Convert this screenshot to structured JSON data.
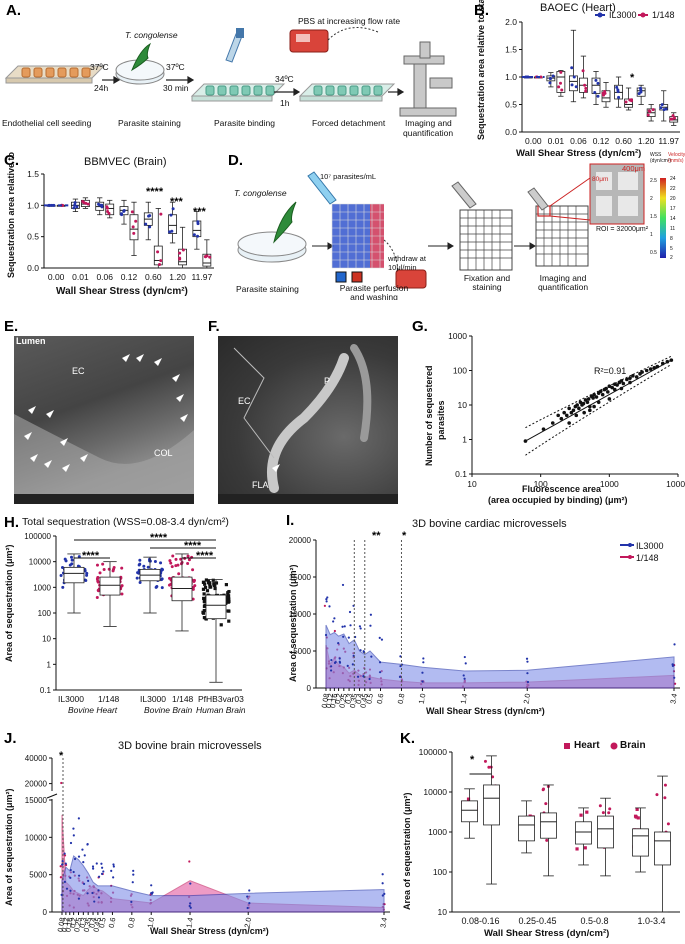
{
  "panels": {
    "A": {
      "label": "A.",
      "steps": [
        "Endothelial cell seeding",
        "Parasite staining",
        "Parasite binding",
        "Forced detachment",
        "Imaging and quantification"
      ],
      "arrow_labels": [
        [
          "37ºC",
          "24h"
        ],
        [
          "37ºC",
          "30 min"
        ],
        [
          "34ºC",
          "1h"
        ]
      ],
      "species": "T. congolense",
      "pbs": "PBS at increasing flow rate"
    },
    "B": {
      "label": "B.",
      "title": "BAOEC (Heart)",
      "ylabel": "Sequestration area relative to static",
      "xlabel": "Wall Shear Stress  (dyn/cm²)",
      "sig": "*"
    },
    "C": {
      "label": "C.",
      "title": "BBMVEC (Brain)",
      "ylabel": "Sequestration area relative to static",
      "xlabel": "Wall Shear Stress  (dyn/cm²)",
      "sig": [
        "****",
        "***",
        "***"
      ]
    },
    "D": {
      "label": "D.",
      "species": "T. congolense",
      "conc": "10⁷ parasites/mL",
      "withdraw": "withdraw at 10μl/min",
      "steps": [
        "Parasite staining",
        "Parasite perfusion and washing",
        "Fixation and staining",
        "Imaging and quantification"
      ],
      "dim1": "400μm",
      "dim2": "80μm",
      "roi": "ROI = 32000μm²",
      "scale_left_title": "WSS (dyn/cm²)",
      "scale_right_title": "Velocity (mm/s)",
      "scale_left": [
        "2.5",
        "2",
        "1.5",
        "1",
        "0.5"
      ],
      "scale_right": [
        "24",
        "22",
        "20",
        "17",
        "14",
        "11",
        "8",
        "5",
        "2"
      ]
    },
    "E": {
      "label": "E.",
      "labels": [
        "Lumen",
        "EC",
        "COL"
      ]
    },
    "F": {
      "label": "F.",
      "labels": [
        "EC",
        "P",
        "FLA"
      ]
    },
    "G": {
      "label": "G.",
      "r2": "R²=0.91",
      "ylabel": [
        "Number of sequestered",
        "parasites"
      ],
      "xlabel": [
        "Fluorescence area",
        "(area occupied by binding) (μm²)"
      ]
    },
    "H": {
      "label": "H.",
      "title": "Total sequestration (WSS=0.08-3.4 dyn/cm²)",
      "ylabel": "Area of sequestration (μm²)",
      "groups": [
        "IL3000",
        "1/148",
        "IL3000",
        "1/148",
        "PfHB3var03"
      ],
      "sub": [
        "Bovine Heart",
        "Bovine Brain",
        "Human Brain"
      ],
      "sig": [
        "****",
        "****",
        "****",
        "****"
      ]
    },
    "I": {
      "label": "I.",
      "title": "3D bovine cardiac microvessels",
      "ylabel": "Area of sequestration (μm²)",
      "xlabel": "Wall Shear Stress  (dyn/cm²)",
      "sig": [
        "**",
        "*"
      ]
    },
    "J": {
      "label": "J.",
      "title": "3D bovine brain microvessels",
      "ylabel": "Area of sequestration (μm²)",
      "xlabel": "Wall Shear Stress  (dyn/cm²)",
      "sig": "*"
    },
    "K": {
      "label": "K.",
      "ylabel": "Area of sequestration (μm²)",
      "xlabel": "Wall Shear Stress  (dyn/cm²)",
      "sig": "*",
      "legend": [
        "Heart",
        "Brain"
      ]
    }
  },
  "legend_strains": [
    "IL3000",
    "1/148"
  ],
  "colors": {
    "il3000": "#2233aa",
    "s148": "#c2185b",
    "black": "#111111",
    "fill_blue": "#7f8fe8",
    "fill_pink": "#e35aa0"
  },
  "chart_data": [
    {
      "panel": "B",
      "type": "box",
      "title": "BAOEC (Heart)",
      "categories": [
        "0.00",
        "0.01",
        "0.06",
        "0.12",
        "0.60",
        "1.20",
        "11.97"
      ],
      "ylim": [
        0,
        2.0
      ],
      "yticks": [
        "0.0",
        "0.5",
        "1.0",
        "1.5",
        "2.0"
      ],
      "xlabel": "Wall Shear Stress  (dyn/cm²)",
      "ylabel": "Sequestration area relative to static",
      "series": [
        {
          "name": "IL3000",
          "box": [
            [
              1,
              1,
              1,
              1,
              1
            ],
            [
              0.82,
              0.93,
              0.98,
              1.02,
              1.08
            ],
            [
              0.55,
              0.75,
              0.92,
              1.02,
              1.85
            ],
            [
              0.5,
              0.7,
              0.85,
              0.98,
              1.1
            ],
            [
              0.45,
              0.6,
              0.72,
              0.85,
              1.0
            ],
            [
              0.5,
              0.65,
              0.75,
              0.8,
              0.85
            ],
            [
              0.2,
              0.4,
              0.45,
              0.5,
              0.75
            ]
          ]
        },
        {
          "name": "1/148",
          "box": [
            [
              1,
              1,
              1,
              1,
              1
            ],
            [
              0.65,
              0.72,
              1.0,
              1.1,
              1.12
            ],
            [
              0.62,
              0.72,
              0.85,
              0.98,
              1.38
            ],
            [
              0.45,
              0.55,
              0.62,
              0.75,
              0.9
            ],
            [
              0.4,
              0.45,
              0.5,
              0.6,
              0.8
            ],
            [
              0.2,
              0.28,
              0.35,
              0.42,
              0.5
            ],
            [
              0.12,
              0.18,
              0.22,
              0.28,
              0.35
            ]
          ]
        }
      ]
    },
    {
      "panel": "C",
      "type": "box",
      "title": "BBMVEC (Brain)",
      "categories": [
        "0.00",
        "0.01",
        "0.06",
        "0.12",
        "0.60",
        "1.20",
        "11.97"
      ],
      "ylim": [
        0,
        1.5
      ],
      "yticks": [
        "0.0",
        "0.5",
        "1.0",
        "1.5"
      ],
      "xlabel": "Wall Shear Stress  (dyn/cm²)",
      "ylabel": "Sequestration area relative to static",
      "series": [
        {
          "name": "IL3000",
          "box": [
            [
              1,
              1,
              1,
              1,
              1
            ],
            [
              0.9,
              0.95,
              1.0,
              1.05,
              1.1
            ],
            [
              0.85,
              0.92,
              0.98,
              1.05,
              1.12
            ],
            [
              0.7,
              0.85,
              0.92,
              0.98,
              1.08
            ],
            [
              0.45,
              0.68,
              0.78,
              0.88,
              1.05
            ],
            [
              0.4,
              0.55,
              0.68,
              0.85,
              1.05
            ],
            [
              0.3,
              0.5,
              0.6,
              0.75,
              0.9
            ]
          ]
        },
        {
          "name": "1/148",
          "box": [
            [
              1,
              1,
              1,
              1,
              1
            ],
            [
              0.95,
              0.98,
              1.02,
              1.08,
              1.12
            ],
            [
              0.8,
              0.85,
              0.95,
              1.02,
              1.08
            ],
            [
              0.2,
              0.45,
              0.62,
              0.85,
              1.05
            ],
            [
              0.0,
              0.05,
              0.12,
              0.35,
              0.95
            ],
            [
              0.0,
              0.05,
              0.1,
              0.3,
              0.65
            ],
            [
              0.0,
              0.03,
              0.08,
              0.22,
              0.45
            ]
          ]
        }
      ]
    },
    {
      "panel": "G",
      "type": "scatter",
      "xscale": "log",
      "yscale": "log",
      "xlim": [
        10,
        10000
      ],
      "ylim": [
        0.1,
        1000
      ],
      "xticks": [
        "10",
        "100",
        "1000",
        "10000"
      ],
      "yticks": [
        "0.1",
        "1",
        "10",
        "100",
        "1000"
      ],
      "r2": 0.91,
      "fit": [
        [
          60,
          0.9
        ],
        [
          8000,
          200
        ]
      ],
      "points": [
        [
          60,
          0.9
        ],
        [
          110,
          2
        ],
        [
          150,
          3
        ],
        [
          180,
          5
        ],
        [
          200,
          4
        ],
        [
          220,
          6
        ],
        [
          240,
          5
        ],
        [
          260,
          8
        ],
        [
          280,
          6
        ],
        [
          300,
          7
        ],
        [
          320,
          9
        ],
        [
          340,
          10
        ],
        [
          360,
          8
        ],
        [
          380,
          12
        ],
        [
          400,
          10
        ],
        [
          420,
          11
        ],
        [
          450,
          14
        ],
        [
          480,
          12
        ],
        [
          500,
          15
        ],
        [
          520,
          9
        ],
        [
          550,
          18
        ],
        [
          580,
          16
        ],
        [
          600,
          20
        ],
        [
          650,
          17
        ],
        [
          700,
          22
        ],
        [
          750,
          25
        ],
        [
          800,
          20
        ],
        [
          850,
          28
        ],
        [
          900,
          30
        ],
        [
          950,
          24
        ],
        [
          1000,
          35
        ],
        [
          1100,
          32
        ],
        [
          1200,
          40
        ],
        [
          1300,
          38
        ],
        [
          1400,
          45
        ],
        [
          1500,
          50
        ],
        [
          1600,
          42
        ],
        [
          1800,
          55
        ],
        [
          2000,
          60
        ],
        [
          2200,
          70
        ],
        [
          2500,
          65
        ],
        [
          2800,
          80
        ],
        [
          3000,
          90
        ],
        [
          3500,
          100
        ],
        [
          4000,
          110
        ],
        [
          4500,
          120
        ],
        [
          5000,
          130
        ],
        [
          6000,
          160
        ],
        [
          7000,
          180
        ],
        [
          8000,
          200
        ],
        [
          260,
          3
        ],
        [
          330,
          5
        ],
        [
          430,
          6
        ],
        [
          520,
          7
        ],
        [
          600,
          9
        ],
        [
          700,
          12
        ],
        [
          1000,
          15
        ],
        [
          1200,
          28
        ],
        [
          1500,
          30
        ],
        [
          2000,
          45
        ]
      ]
    },
    {
      "panel": "H",
      "type": "box_scatter",
      "yscale": "log",
      "ylim": [
        0.1,
        100000
      ],
      "yticks": [
        "0.1",
        "1",
        "10",
        "100",
        "1000",
        "10000",
        "100000"
      ],
      "categories": [
        "IL3000",
        "1/148",
        "IL3000",
        "1/148",
        "PfHB3var03"
      ],
      "box": [
        [
          100,
          1500,
          3500,
          6000,
          20000
        ],
        [
          30,
          500,
          1200,
          2500,
          10000
        ],
        [
          100,
          1800,
          3000,
          5000,
          15000
        ],
        [
          20,
          300,
          900,
          2500,
          20000
        ],
        [
          0.2,
          60,
          200,
          500,
          2000
        ]
      ]
    },
    {
      "panel": "I",
      "type": "area",
      "title": "3D bovine cardiac microvessels",
      "x": [
        0.08,
        0.12,
        0.16,
        0.2,
        0.25,
        0.3,
        0.35,
        0.4,
        0.45,
        0.5,
        0.6,
        0.8,
        1.0,
        1.4,
        2.0,
        3.4
      ],
      "ylim": [
        0,
        20000
      ],
      "yticks": [
        "0",
        "5000",
        "10000",
        "15000",
        "20000"
      ],
      "xticks": [
        "0.08",
        "0.12",
        "0.16",
        "0.2",
        "0.25",
        "0.3",
        "0.35",
        "0.4",
        "0.45",
        "0.5",
        "0.6",
        "0.8",
        "1.0",
        "1.4",
        "2.0",
        "3.4"
      ],
      "series": [
        {
          "name": "IL3000",
          "values": [
            8500,
            7200,
            7500,
            7000,
            7300,
            6000,
            6500,
            5000,
            4500,
            5000,
            3500,
            3200,
            2800,
            2300,
            2400,
            4200
          ]
        },
        {
          "name": "1/148",
          "values": [
            5800,
            3200,
            4000,
            3200,
            2800,
            2000,
            2400,
            1800,
            1500,
            1500,
            1200,
            900,
            700,
            700,
            800,
            1700
          ]
        }
      ]
    },
    {
      "panel": "J",
      "type": "area",
      "title": "3D bovine brain microvessels",
      "x": [
        0.08,
        0.12,
        0.16,
        0.2,
        0.25,
        0.3,
        0.35,
        0.4,
        0.45,
        0.5,
        0.6,
        0.8,
        1.0,
        1.4,
        2.0,
        3.4
      ],
      "yticks": [
        "0",
        "5000",
        "10000",
        "15000",
        "20000",
        "40000"
      ],
      "xticks": [
        "0.08",
        "0.12",
        "0.16",
        "0.2",
        "0.25",
        "0.3",
        "0.35",
        "0.4",
        "0.45",
        "0.5",
        "0.6",
        "0.8",
        "1.0",
        "1.4",
        "2.0",
        "3.4"
      ],
      "series": [
        {
          "name": "IL3000",
          "values": [
            4200,
            6000,
            5500,
            7500,
            7000,
            6200,
            5200,
            4000,
            3500,
            3500,
            3500,
            2800,
            2200,
            2200,
            2500,
            3000
          ]
        },
        {
          "name": "1/148",
          "values": [
            13000,
            4000,
            3500,
            2800,
            2500,
            2200,
            3000,
            3500,
            3000,
            2800,
            1800,
            1500,
            1200,
            4200,
            1200,
            600
          ]
        }
      ]
    },
    {
      "panel": "K",
      "type": "box_scatter",
      "yscale": "log",
      "ylim": [
        10,
        100000
      ],
      "yticks": [
        "10",
        "100",
        "1000",
        "10000",
        "100000"
      ],
      "categories": [
        "0.08-0.16",
        "0.25-0.45",
        "0.5-0.8",
        "1.0-3.4"
      ],
      "series": [
        {
          "name": "Heart",
          "box": [
            [
              700,
              1800,
              3500,
              6000,
              12000
            ],
            [
              300,
              600,
              1500,
              2500,
              6000
            ],
            [
              150,
              500,
              1000,
              1800,
              4000
            ],
            [
              100,
              250,
              800,
              1200,
              4000
            ]
          ]
        },
        {
          "name": "Brain",
          "box": [
            [
              50,
              1500,
              7000,
              15000,
              80000
            ],
            [
              80,
              700,
              1800,
              3000,
              15000
            ],
            [
              80,
              400,
              1200,
              2500,
              7000
            ],
            [
              10,
              150,
              600,
              1000,
              25000
            ]
          ]
        }
      ]
    }
  ]
}
